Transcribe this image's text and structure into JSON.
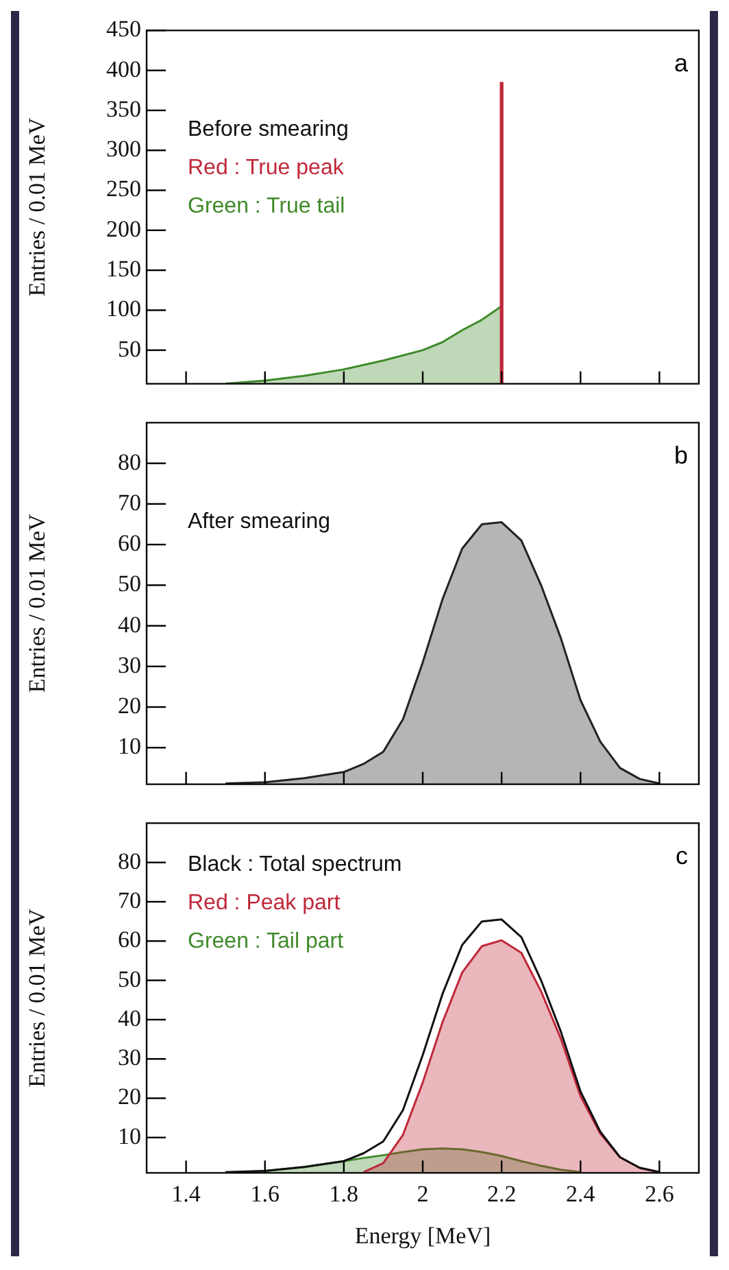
{
  "chart_data": [
    {
      "type": "area",
      "title": "a",
      "ylabel": "Entries / 0.01 MeV",
      "annotations": [
        "Before smearing"
      ],
      "legend": "top left",
      "tick_labels": "y",
      "xlim": [
        1.3,
        2.7
      ],
      "xticks": [
        1.4,
        1.6,
        1.8,
        2,
        2.2,
        2.4,
        2.6
      ],
      "ylim": [
        8,
        450
      ],
      "yticks": [
        50,
        100,
        150,
        200,
        250,
        300,
        350,
        400,
        450
      ],
      "series": [
        {
          "name": "Red : True peak",
          "type": "bar",
          "color": "#c0283a",
          "x": [
            2.2
          ],
          "values": [
            385
          ]
        },
        {
          "name": "Green : True tail",
          "color": "#3f8a2a",
          "x": [
            1.5,
            1.6,
            1.7,
            1.8,
            1.9,
            2.0,
            2.05,
            2.1,
            2.15,
            2.2
          ],
          "values": [
            8,
            12,
            18,
            26,
            37,
            50,
            60,
            75,
            88,
            105
          ]
        }
      ]
    },
    {
      "type": "area",
      "title": "b",
      "ylabel": "Entries / 0.01 MeV",
      "annotations": [
        "After smearing"
      ],
      "tick_labels": "y",
      "xlim": [
        1.3,
        2.7
      ],
      "xticks": [
        1.4,
        1.6,
        1.8,
        2,
        2.2,
        2.4,
        2.6
      ],
      "ylim": [
        1,
        90
      ],
      "yticks": [
        10,
        20,
        30,
        40,
        50,
        60,
        70,
        80
      ],
      "series": [
        {
          "color": "#222222",
          "x": [
            1.5,
            1.6,
            1.7,
            1.8,
            1.85,
            1.9,
            1.95,
            2.0,
            2.05,
            2.1,
            2.15,
            2.2,
            2.25,
            2.3,
            2.35,
            2.4,
            2.45,
            2.5,
            2.55,
            2.6
          ],
          "values": [
            1.2,
            1.5,
            2.5,
            4,
            6,
            9,
            17,
            31,
            46.5,
            59,
            65,
            65.5,
            61,
            50,
            37,
            21.7,
            11.5,
            5,
            2.3,
            1.2
          ]
        }
      ]
    },
    {
      "type": "area",
      "title": "c",
      "xlabel": "Energy [MeV]",
      "ylabel": "Entries / 0.01 MeV",
      "legend": "top left",
      "xlim": [
        1.3,
        2.7
      ],
      "xticks": [
        1.4,
        1.6,
        1.8,
        2,
        2.2,
        2.4,
        2.6
      ],
      "ylim": [
        1,
        90
      ],
      "yticks": [
        10,
        20,
        30,
        40,
        50,
        60,
        70,
        80
      ],
      "series": [
        {
          "name": "Black : Total spectrum",
          "type": "line",
          "color": "#111111",
          "x": [
            1.5,
            1.6,
            1.7,
            1.8,
            1.85,
            1.9,
            1.95,
            2.0,
            2.05,
            2.1,
            2.15,
            2.2,
            2.25,
            2.3,
            2.35,
            2.4,
            2.45,
            2.5,
            2.55,
            2.6
          ],
          "values": [
            1.2,
            1.5,
            2.5,
            4,
            6,
            9,
            17,
            31,
            46.5,
            59,
            65,
            65.5,
            61,
            50,
            37,
            21.7,
            11.5,
            5,
            2.3,
            1.2
          ]
        },
        {
          "name": "Red : Peak part",
          "color": "#c0283a",
          "x": [
            1.85,
            1.9,
            1.95,
            2.0,
            2.05,
            2.1,
            2.15,
            2.2,
            2.25,
            2.3,
            2.35,
            2.4,
            2.45,
            2.5,
            2.55,
            2.6
          ],
          "values": [
            1.2,
            3.5,
            10.7,
            24,
            39.3,
            52,
            58.7,
            60.2,
            57,
            47.2,
            35.2,
            20.5,
            11,
            5,
            2.3,
            1.2
          ]
        },
        {
          "name": "Green : Tail part",
          "color": "#3f8a2a",
          "x": [
            1.5,
            1.6,
            1.7,
            1.8,
            1.85,
            1.9,
            1.95,
            2.0,
            2.05,
            2.1,
            2.15,
            2.2,
            2.25,
            2.3,
            2.35,
            2.4
          ],
          "values": [
            1,
            1.5,
            2.5,
            4,
            4.8,
            5.5,
            6.3,
            7,
            7.2,
            7,
            6.3,
            5.3,
            4,
            2.8,
            1.8,
            1.2
          ]
        }
      ]
    }
  ]
}
